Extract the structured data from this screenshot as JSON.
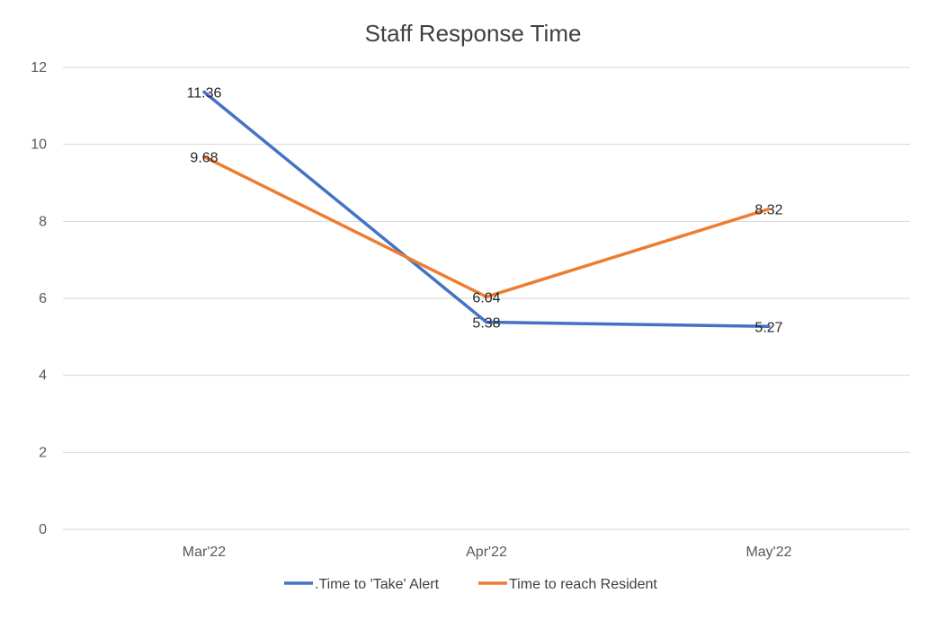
{
  "chart_data": {
    "type": "line",
    "title": "Staff Response Time",
    "xlabel": "",
    "ylabel": "",
    "categories": [
      "Mar'22",
      "Apr'22",
      "May'22"
    ],
    "ylim": [
      0,
      12
    ],
    "yticks": [
      0,
      2,
      4,
      6,
      8,
      10,
      12
    ],
    "grid": true,
    "legend": "bottom",
    "series": [
      {
        "name": ".Time to 'Take' Alert",
        "color": "#4472C4",
        "values": [
          11.36,
          5.38,
          5.27
        ],
        "labels": [
          "11.36",
          "5.38",
          "5.27"
        ]
      },
      {
        "name": "Time to reach Resident",
        "color": "#ED7D31",
        "values": [
          9.68,
          6.04,
          8.32
        ],
        "labels": [
          "9.68",
          "6.04",
          "8.32"
        ]
      }
    ]
  }
}
